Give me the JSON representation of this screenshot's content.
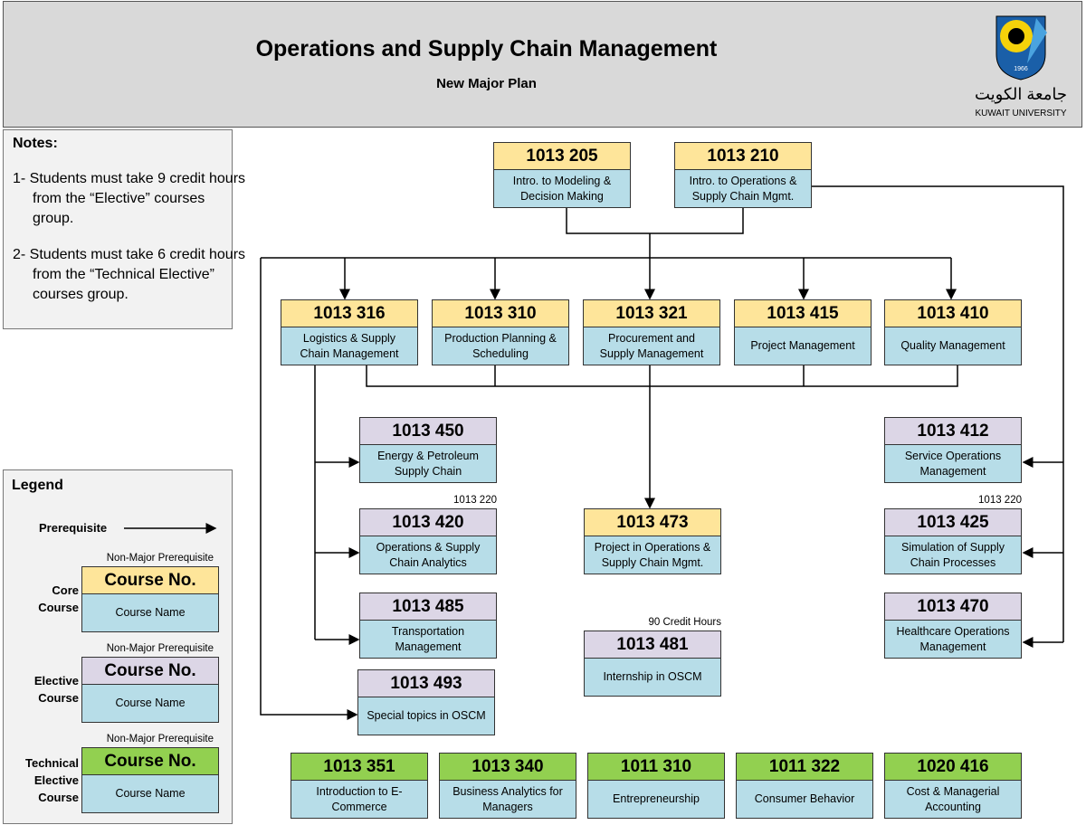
{
  "header": {
    "title": "Operations and Supply Chain Management",
    "subtitle": "New Major Plan",
    "logo_year": "1966",
    "university_arabic": "جامعة الكويت",
    "university_english": "KUWAIT UNIVERSITY"
  },
  "notes": {
    "title": "Notes:",
    "items": [
      "1- Students must take 9 credit hours from the “Elective” courses group.",
      "2- Students must take 6 credit hours from the “Technical Elective” courses group."
    ]
  },
  "legend": {
    "title": "Legend",
    "prerequisite": "Prerequisite",
    "core": {
      "prerequisite_note": "Non-Major Prerequisite",
      "number": "Course No.",
      "name": "Course Name",
      "label": "Core Course"
    },
    "elective": {
      "prerequisite_note": "Non-Major Prerequisite",
      "number": "Course No.",
      "name": "Course Name",
      "label": "Elective Course"
    },
    "technical_elective": {
      "prerequisite_note": "Non-Major Prerequisite",
      "number": "Course No.",
      "name": "Course Name",
      "label": "Technical Elective Course"
    }
  },
  "courses": {
    "core": [
      {
        "number": "1013 205",
        "name": "Intro. to Modeling & Decision Making"
      },
      {
        "number": "1013 210",
        "name": "Intro. to Operations & Supply Chain Mgmt."
      },
      {
        "number": "1013 316",
        "name": "Logistics & Supply Chain Management"
      },
      {
        "number": "1013 310",
        "name": "Production Planning & Scheduling"
      },
      {
        "number": "1013 321",
        "name": "Procurement and Supply Management"
      },
      {
        "number": "1013 415",
        "name": "Project Management"
      },
      {
        "number": "1013 410",
        "name": "Quality Management"
      },
      {
        "number": "1013 473",
        "name": "Project in Operations & Supply Chain Mgmt."
      }
    ],
    "elective": [
      {
        "number": "1013 450",
        "name": "Energy & Petroleum Supply Chain"
      },
      {
        "number": "1013 420",
        "name": "Operations & Supply Chain Analytics",
        "note": "1013 220"
      },
      {
        "number": "1013 485",
        "name": "Transportation Management"
      },
      {
        "number": "1013 493",
        "name": "Special topics in OSCM"
      },
      {
        "number": "1013 481",
        "name": "Internship in OSCM",
        "note": "90 Credit Hours"
      },
      {
        "number": "1013 412",
        "name": "Service Operations Management"
      },
      {
        "number": "1013 425",
        "name": "Simulation of Supply Chain Processes",
        "note": "1013 220"
      },
      {
        "number": "1013 470",
        "name": "Healthcare Operations Management"
      }
    ],
    "technical_elective": [
      {
        "number": "1013 351",
        "name": "Introduction to E-Commerce"
      },
      {
        "number": "1013 340",
        "name": "Business Analytics for Managers"
      },
      {
        "number": "1011 310",
        "name": "Entrepreneurship"
      },
      {
        "number": "1011 322",
        "name": "Consumer Behavior"
      },
      {
        "number": "1020 416",
        "name": "Cost & Managerial Accounting"
      }
    ]
  }
}
